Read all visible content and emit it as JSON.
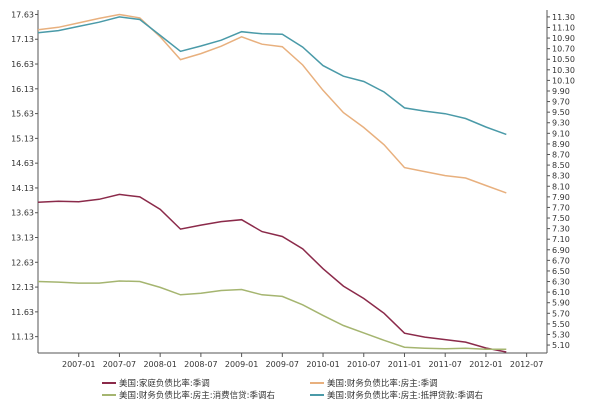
{
  "chart_data": {
    "type": "line",
    "title": "",
    "xlabel": "",
    "ylabel": "",
    "x_range": [
      2006.5,
      2012.75
    ],
    "x_ticks": [
      {
        "label": "2007-01",
        "value": 2007.0
      },
      {
        "label": "2007-07",
        "value": 2007.5
      },
      {
        "label": "2008-01",
        "value": 2008.0
      },
      {
        "label": "2008-07",
        "value": 2008.5
      },
      {
        "label": "2009-01",
        "value": 2009.0
      },
      {
        "label": "2009-07",
        "value": 2009.5
      },
      {
        "label": "2010-01",
        "value": 2010.0
      },
      {
        "label": "2010-07",
        "value": 2010.5
      },
      {
        "label": "2011-01",
        "value": 2011.0
      },
      {
        "label": "2011-07",
        "value": 2011.5
      },
      {
        "label": "2012-01",
        "value": 2012.0
      },
      {
        "label": "2012-07",
        "value": 2012.5
      }
    ],
    "y_left": {
      "ylim": [
        10.8,
        17.72
      ],
      "ticks": [
        "17.63",
        "17.13",
        "16.63",
        "16.13",
        "15.63",
        "15.13",
        "14.63",
        "14.13",
        "13.63",
        "13.13",
        "12.63",
        "12.13",
        "11.63",
        "11.13"
      ]
    },
    "y_right": {
      "ylim": [
        4.95,
        11.43
      ],
      "ticks": [
        "11.30",
        "11.10",
        "10.90",
        "10.70",
        "10.50",
        "10.30",
        "10.10",
        "9.90",
        "9.70",
        "9.50",
        "9.30",
        "9.10",
        "8.90",
        "8.70",
        "8.50",
        "8.30",
        "8.10",
        "7.90",
        "7.70",
        "7.50",
        "7.30",
        "7.10",
        "6.90",
        "6.70",
        "6.50",
        "6.30",
        "6.10",
        "5.90",
        "5.70",
        "5.50",
        "5.30",
        "5.10"
      ]
    },
    "legend_position": "bottom",
    "series": [
      {
        "name": "美国:家庭负债比率:季调",
        "axis": "left",
        "color": "#8b2a4a",
        "points": [
          [
            2006.5,
            13.84
          ],
          [
            2006.75,
            13.86
          ],
          [
            2007.0,
            13.85
          ],
          [
            2007.25,
            13.9
          ],
          [
            2007.5,
            14.0
          ],
          [
            2007.75,
            13.95
          ],
          [
            2008.0,
            13.7
          ],
          [
            2008.25,
            13.3
          ],
          [
            2008.5,
            13.38
          ],
          [
            2008.75,
            13.45
          ],
          [
            2009.0,
            13.49
          ],
          [
            2009.25,
            13.25
          ],
          [
            2009.5,
            13.15
          ],
          [
            2009.75,
            12.9
          ],
          [
            2010.0,
            12.5
          ],
          [
            2010.25,
            12.15
          ],
          [
            2010.5,
            11.9
          ],
          [
            2010.75,
            11.6
          ],
          [
            2011.0,
            11.2
          ],
          [
            2011.25,
            11.12
          ],
          [
            2011.5,
            11.07
          ],
          [
            2011.75,
            11.02
          ],
          [
            2012.0,
            10.9
          ],
          [
            2012.25,
            10.82
          ]
        ]
      },
      {
        "name": "美国:财务负债比率:房主:季调",
        "axis": "left",
        "color": "#e8b07e",
        "points": [
          [
            2006.5,
            17.32
          ],
          [
            2006.75,
            17.37
          ],
          [
            2007.0,
            17.46
          ],
          [
            2007.25,
            17.55
          ],
          [
            2007.5,
            17.63
          ],
          [
            2007.75,
            17.56
          ],
          [
            2008.0,
            17.18
          ],
          [
            2008.25,
            16.72
          ],
          [
            2008.5,
            16.84
          ],
          [
            2008.75,
            16.99
          ],
          [
            2009.0,
            17.18
          ],
          [
            2009.25,
            17.03
          ],
          [
            2009.5,
            16.98
          ],
          [
            2009.75,
            16.61
          ],
          [
            2010.0,
            16.1
          ],
          [
            2010.25,
            15.65
          ],
          [
            2010.5,
            15.35
          ],
          [
            2010.75,
            15.0
          ],
          [
            2011.0,
            14.54
          ],
          [
            2011.25,
            14.46
          ],
          [
            2011.5,
            14.38
          ],
          [
            2011.75,
            14.33
          ],
          [
            2012.0,
            14.18
          ],
          [
            2012.25,
            14.03
          ]
        ]
      },
      {
        "name": "美国:财务负债比率:房主:消费信贷:季调右",
        "axis": "right",
        "color": "#a5b570",
        "points": [
          [
            2006.5,
            6.3
          ],
          [
            2006.75,
            6.29
          ],
          [
            2007.0,
            6.27
          ],
          [
            2007.25,
            6.27
          ],
          [
            2007.5,
            6.31
          ],
          [
            2007.75,
            6.3
          ],
          [
            2008.0,
            6.19
          ],
          [
            2008.25,
            6.05
          ],
          [
            2008.5,
            6.08
          ],
          [
            2008.75,
            6.13
          ],
          [
            2009.0,
            6.15
          ],
          [
            2009.25,
            6.05
          ],
          [
            2009.5,
            6.02
          ],
          [
            2009.75,
            5.86
          ],
          [
            2010.0,
            5.66
          ],
          [
            2010.25,
            5.47
          ],
          [
            2010.5,
            5.33
          ],
          [
            2010.75,
            5.19
          ],
          [
            2011.0,
            5.06
          ],
          [
            2011.25,
            5.04
          ],
          [
            2011.5,
            5.03
          ],
          [
            2011.75,
            5.04
          ],
          [
            2012.0,
            5.02
          ],
          [
            2012.25,
            5.02
          ]
        ]
      },
      {
        "name": "美国:财务负债比率:房主:抵押贷款:季调右",
        "axis": "right",
        "color": "#4a9aa8",
        "points": [
          [
            2006.5,
            11.0
          ],
          [
            2006.75,
            11.04
          ],
          [
            2007.0,
            11.12
          ],
          [
            2007.25,
            11.2
          ],
          [
            2007.5,
            11.3
          ],
          [
            2007.75,
            11.25
          ],
          [
            2008.0,
            10.95
          ],
          [
            2008.25,
            10.65
          ],
          [
            2008.5,
            10.75
          ],
          [
            2008.75,
            10.86
          ],
          [
            2009.0,
            11.02
          ],
          [
            2009.25,
            10.98
          ],
          [
            2009.5,
            10.97
          ],
          [
            2009.75,
            10.73
          ],
          [
            2010.0,
            10.38
          ],
          [
            2010.25,
            10.18
          ],
          [
            2010.5,
            10.08
          ],
          [
            2010.75,
            9.88
          ],
          [
            2011.0,
            9.58
          ],
          [
            2011.25,
            9.52
          ],
          [
            2011.5,
            9.47
          ],
          [
            2011.75,
            9.38
          ],
          [
            2012.0,
            9.22
          ],
          [
            2012.25,
            9.08
          ]
        ]
      }
    ]
  }
}
